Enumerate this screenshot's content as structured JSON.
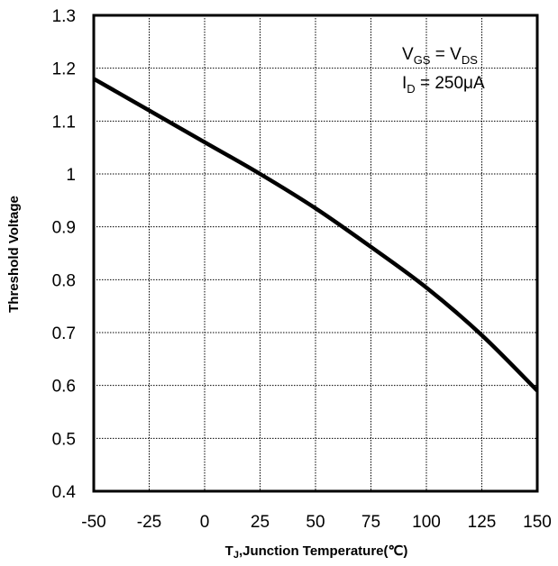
{
  "chart_data": {
    "type": "line",
    "xlabel_main": "T",
    "xlabel_sub": "J",
    "xlabel_rest": ",Junction Temperature(℃)",
    "ylabel": "Threshold Voltage",
    "xlim": [
      -50,
      150
    ],
    "ylim": [
      0.4,
      1.3
    ],
    "xticks": [
      -50,
      -25,
      0,
      25,
      50,
      75,
      100,
      125,
      150
    ],
    "xtick_labels": [
      "-50",
      "-25",
      "0",
      "25",
      "50",
      "75",
      "100",
      "125",
      "150"
    ],
    "yticks": [
      0.4,
      0.5,
      0.6,
      0.7,
      0.8,
      0.9,
      1.0,
      1.1,
      1.2,
      1.3
    ],
    "ytick_labels": [
      "0.4",
      "0.5",
      "0.6",
      "0.7",
      "0.8",
      "0.9",
      "1",
      "1.1",
      "1.2",
      "1.3"
    ],
    "grid": true,
    "annotation": {
      "line1": {
        "v": "V",
        "gs": "GS",
        "eq": " = V",
        "ds": "DS"
      },
      "line2": {
        "i": "I",
        "d": "D",
        "rest": " = 250μA"
      }
    },
    "series": [
      {
        "x": [
          -50,
          -25,
          0,
          25,
          50,
          75,
          100,
          125,
          150
        ],
        "y": [
          1.18,
          1.12,
          1.06,
          1.0,
          0.935,
          0.862,
          0.785,
          0.695,
          0.59
        ]
      }
    ]
  }
}
